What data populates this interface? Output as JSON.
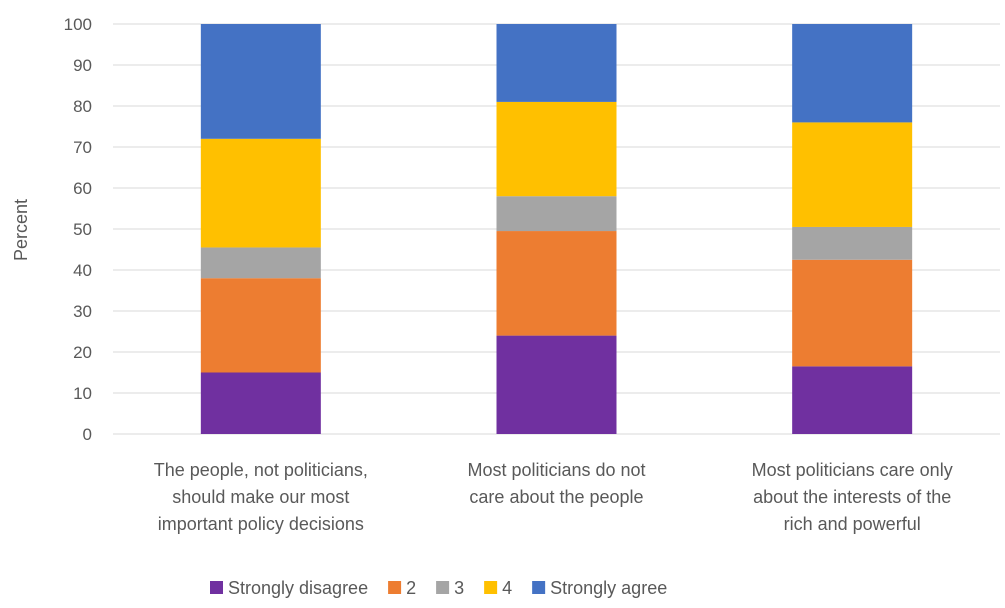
{
  "chart_data": {
    "type": "bar",
    "stacked": true,
    "ylabel": "Percent",
    "ylim": [
      0,
      100
    ],
    "yticks": [
      0,
      10,
      20,
      30,
      40,
      50,
      60,
      70,
      80,
      90,
      100
    ],
    "grid": true,
    "legend_position": "bottom",
    "categories": [
      [
        "The people, not politicians,",
        "should make our most",
        "important policy decisions"
      ],
      [
        "Most politicians do not",
        "care about the people"
      ],
      [
        "Most politicians care only",
        "about the interests of the",
        "rich and powerful"
      ]
    ],
    "series": [
      {
        "name": "Strongly disagree",
        "color": "#7030a0",
        "values": [
          15,
          24,
          16.5
        ]
      },
      {
        "name": "2",
        "color": "#ed7d31",
        "values": [
          23,
          25.5,
          26
        ]
      },
      {
        "name": "3",
        "color": "#a5a5a5",
        "values": [
          7.5,
          8.5,
          8
        ]
      },
      {
        "name": "4",
        "color": "#ffc000",
        "values": [
          26.5,
          23,
          25.5
        ]
      },
      {
        "name": "Strongly agree",
        "color": "#4472c4",
        "values": [
          28,
          19,
          24
        ]
      }
    ]
  }
}
